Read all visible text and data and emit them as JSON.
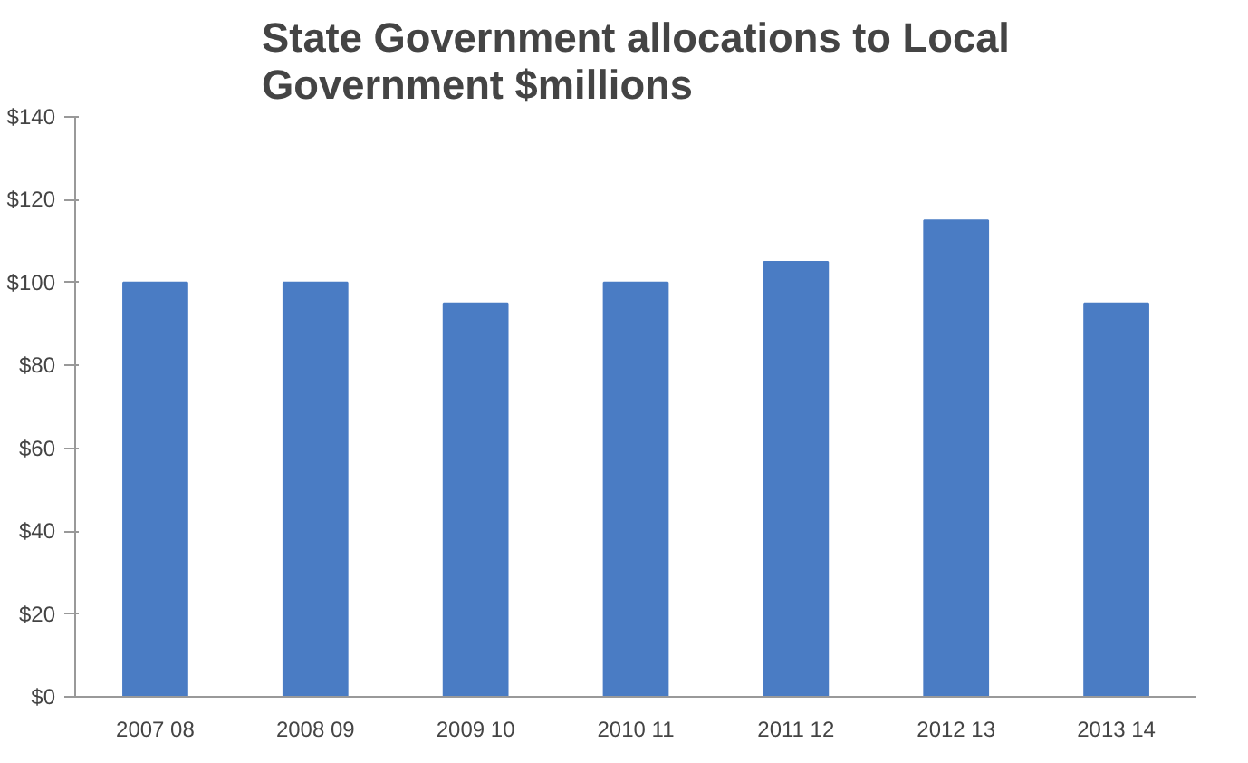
{
  "chart_data": {
    "type": "bar",
    "title": "State Government allocations to Local\nGovernment  $millions",
    "categories": [
      "2007 08",
      "2008 09",
      "2009 10",
      "2010 11",
      "2011 12",
      "2012 13",
      "2013 14"
    ],
    "values": [
      100,
      100,
      95,
      100,
      105,
      115,
      95
    ],
    "color": "#4a7cc4",
    "ylim": [
      0,
      140
    ],
    "yticks": [
      {
        "value": 0,
        "label": "$0"
      },
      {
        "value": 20,
        "label": "$20"
      },
      {
        "value": 40,
        "label": "$40"
      },
      {
        "value": 60,
        "label": "$60"
      },
      {
        "value": 80,
        "label": "$80"
      },
      {
        "value": 100,
        "label": "$100"
      },
      {
        "value": 120,
        "label": "$120"
      },
      {
        "value": 140,
        "label": "$140"
      }
    ],
    "grid": false
  }
}
